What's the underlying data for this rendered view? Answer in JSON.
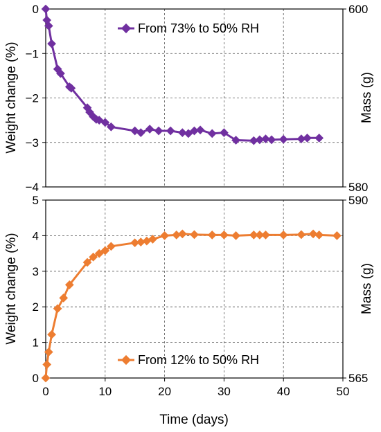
{
  "chart_data": [
    {
      "type": "line",
      "panel": "top",
      "xlim": [
        0,
        50
      ],
      "ylim": [
        -4,
        0
      ],
      "yticks": [
        "0",
        "−1",
        "−2",
        "−3",
        "−4"
      ],
      "ylabel": "Weight change (%)",
      "y2lim": [
        580,
        600
      ],
      "y2ticks": [
        "600",
        "580"
      ],
      "y2label": "Mass (g)",
      "grid": true,
      "legend_position": "top-center",
      "series": [
        {
          "name": "From 73% to 50% RH",
          "color": "#7030A0",
          "x": [
            0,
            0.2,
            0.5,
            1,
            2,
            2.5,
            4,
            4.3,
            7,
            7.4,
            8,
            8.5,
            9,
            10,
            11,
            15,
            16,
            17.5,
            19,
            21,
            23,
            24,
            25,
            26,
            28,
            30,
            32,
            35,
            36,
            37,
            38,
            40,
            43,
            44,
            46
          ],
          "y": [
            0,
            -0.25,
            -0.38,
            -0.78,
            -1.35,
            -1.45,
            -1.75,
            -1.78,
            -2.22,
            -2.32,
            -2.42,
            -2.48,
            -2.5,
            -2.55,
            -2.65,
            -2.74,
            -2.78,
            -2.7,
            -2.74,
            -2.74,
            -2.78,
            -2.8,
            -2.74,
            -2.72,
            -2.8,
            -2.78,
            -2.95,
            -2.96,
            -2.94,
            -2.92,
            -2.94,
            -2.93,
            -2.92,
            -2.9,
            -2.9
          ]
        }
      ]
    },
    {
      "type": "line",
      "panel": "bottom",
      "xlim": [
        0,
        50
      ],
      "xticks": [
        "0",
        "10",
        "20",
        "30",
        "40",
        "50"
      ],
      "xlabel": "Time (days)",
      "ylim": [
        0,
        5
      ],
      "yticks": [
        "5",
        "4",
        "3",
        "2",
        "1",
        "0"
      ],
      "ylabel": "Weight change (%)",
      "y2lim": [
        565,
        590
      ],
      "y2ticks": [
        "590",
        "565"
      ],
      "y2label": "Mass (g)",
      "grid": true,
      "legend_position": "bottom-center",
      "series": [
        {
          "name": "From 12% to 50% RH",
          "color": "#ED7D31",
          "x": [
            0,
            0.2,
            0.5,
            1,
            2,
            3,
            4,
            7,
            8,
            9,
            10,
            11,
            15,
            16,
            17,
            18,
            20,
            22,
            23,
            25,
            28,
            30,
            32,
            35,
            36,
            37,
            40,
            43,
            45,
            46,
            49
          ],
          "y": [
            0,
            0.38,
            0.73,
            1.22,
            1.95,
            2.25,
            2.62,
            3.25,
            3.4,
            3.5,
            3.58,
            3.7,
            3.8,
            3.82,
            3.85,
            3.9,
            4.0,
            4.02,
            4.05,
            4.03,
            4.02,
            4.02,
            4.0,
            4.02,
            4.02,
            4.02,
            4.02,
            4.03,
            4.05,
            4.02,
            4.0
          ]
        }
      ]
    }
  ]
}
